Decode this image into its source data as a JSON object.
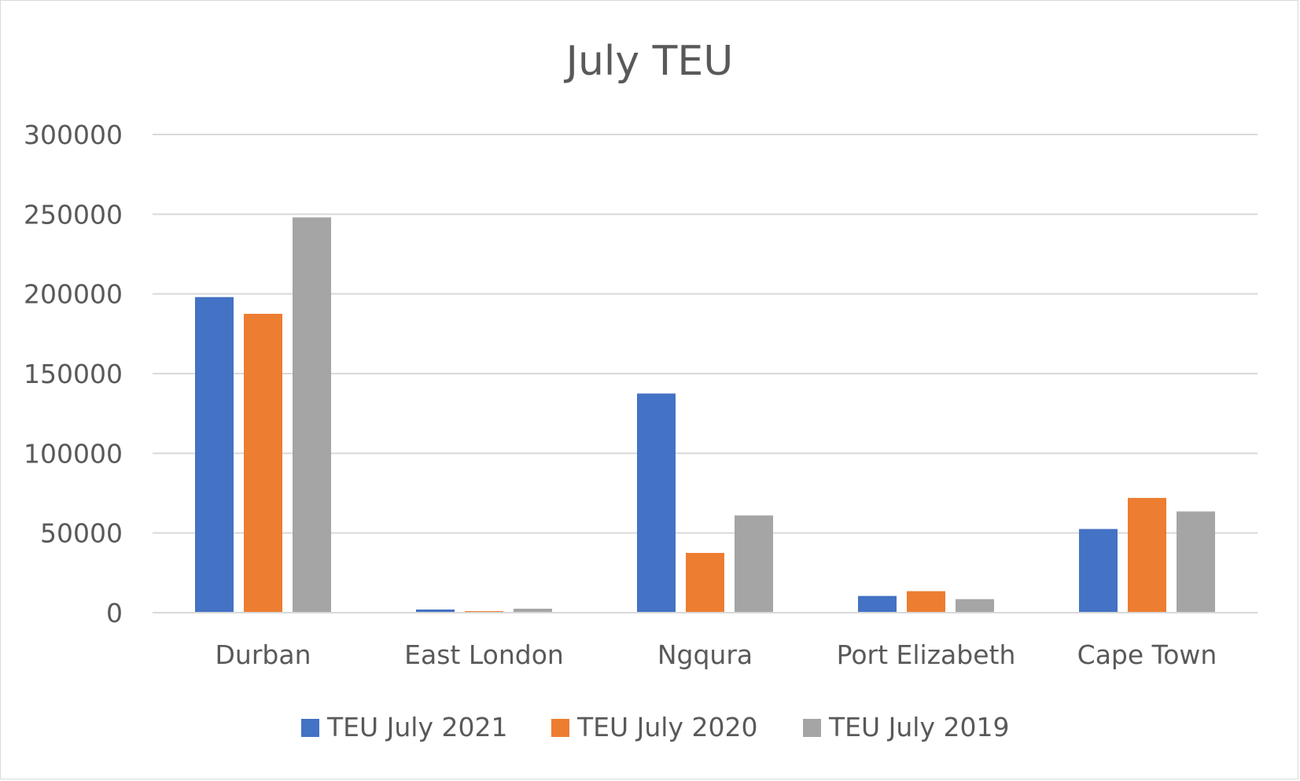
{
  "chart_data": {
    "type": "bar",
    "title": "July TEU",
    "categories": [
      "Durban",
      "East London",
      "Ngqura",
      "Port Elizabeth",
      "Cape Town"
    ],
    "series": [
      {
        "name": "TEU July 2021",
        "color": "#4472c4",
        "values": [
          198000,
          2000,
          137500,
          10500,
          52500
        ]
      },
      {
        "name": "TEU July 2020",
        "color": "#ed7d31",
        "values": [
          187500,
          1000,
          37500,
          13500,
          72000
        ]
      },
      {
        "name": "TEU July 2019",
        "color": "#a5a5a5",
        "values": [
          248000,
          2500,
          61000,
          8500,
          63500
        ]
      }
    ],
    "ylim": [
      0,
      300000
    ],
    "yticks": [
      0,
      50000,
      100000,
      150000,
      200000,
      250000,
      300000
    ],
    "ytick_labels": [
      "0",
      "50000",
      "100000",
      "150000",
      "200000",
      "250000",
      "300000"
    ],
    "grid": true,
    "legend_position": "bottom"
  }
}
